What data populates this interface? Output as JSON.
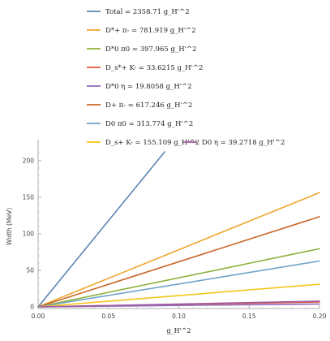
{
  "chart_data": {
    "type": "line",
    "title": "",
    "xlabel": "g_H'^2",
    "ylabel": "Width (MeV)",
    "xlim": [
      0,
      0.2
    ],
    "ylim": [
      0,
      220
    ],
    "x_ticks": [
      "0.00",
      "0.05",
      "0.10",
      "0.15",
      "0.20"
    ],
    "y_ticks": [
      "0",
      "50",
      "100",
      "150",
      "200"
    ],
    "grid": false,
    "legend_placement": "top",
    "series": [
      {
        "name": "Total = 2358.71 g_H'^2",
        "label_html": "Total = 2358.71 <tspan font-style=\"italic\">g</tspan><tspan font-size=\"6\" dy=\"2\" font-style=\"italic\">H</tspan><tspan font-size=\"6\" dy=\"-5\">&#8242;2</tspan>",
        "slope": 2358.71,
        "x_end": 0.09,
        "color": "#5b84b1"
      },
      {
        "name": "D*+ π- = 781.919 g_H'^2",
        "slope": 781.919,
        "x_end": 0.2,
        "color": "#f0a52a"
      },
      {
        "name": "D*0 π0 = 397.965 g_H'^2",
        "slope": 397.965,
        "x_end": 0.2,
        "color": "#8fb03a"
      },
      {
        "name": "D_s*+ K- = 33.6215 g_H'^2",
        "slope": 33.6215,
        "x_end": 0.2,
        "color": "#e25b3a"
      },
      {
        "name": "D*0 η = 19.8058 g_H'^2",
        "slope": 19.8058,
        "x_end": 0.2,
        "color": "#8e6bb9"
      },
      {
        "name": "D+ π- = 617.246 g_H'^2",
        "slope": 617.246,
        "x_end": 0.2,
        "color": "#c8662a"
      },
      {
        "name": "D0 π0 = 313.774 g_H'^2",
        "slope": 313.774,
        "x_end": 0.2,
        "color": "#6fa3c9"
      },
      {
        "name": "D_s+ K- = 155.109 g_H'^2",
        "slope": 155.109,
        "x_end": 0.2,
        "color": "#f5c518"
      },
      {
        "name": "D0 η = 39.2718 g_H'^2",
        "slope": 39.2718,
        "x_end": 0.2,
        "color": "#a05ba0"
      }
    ]
  }
}
